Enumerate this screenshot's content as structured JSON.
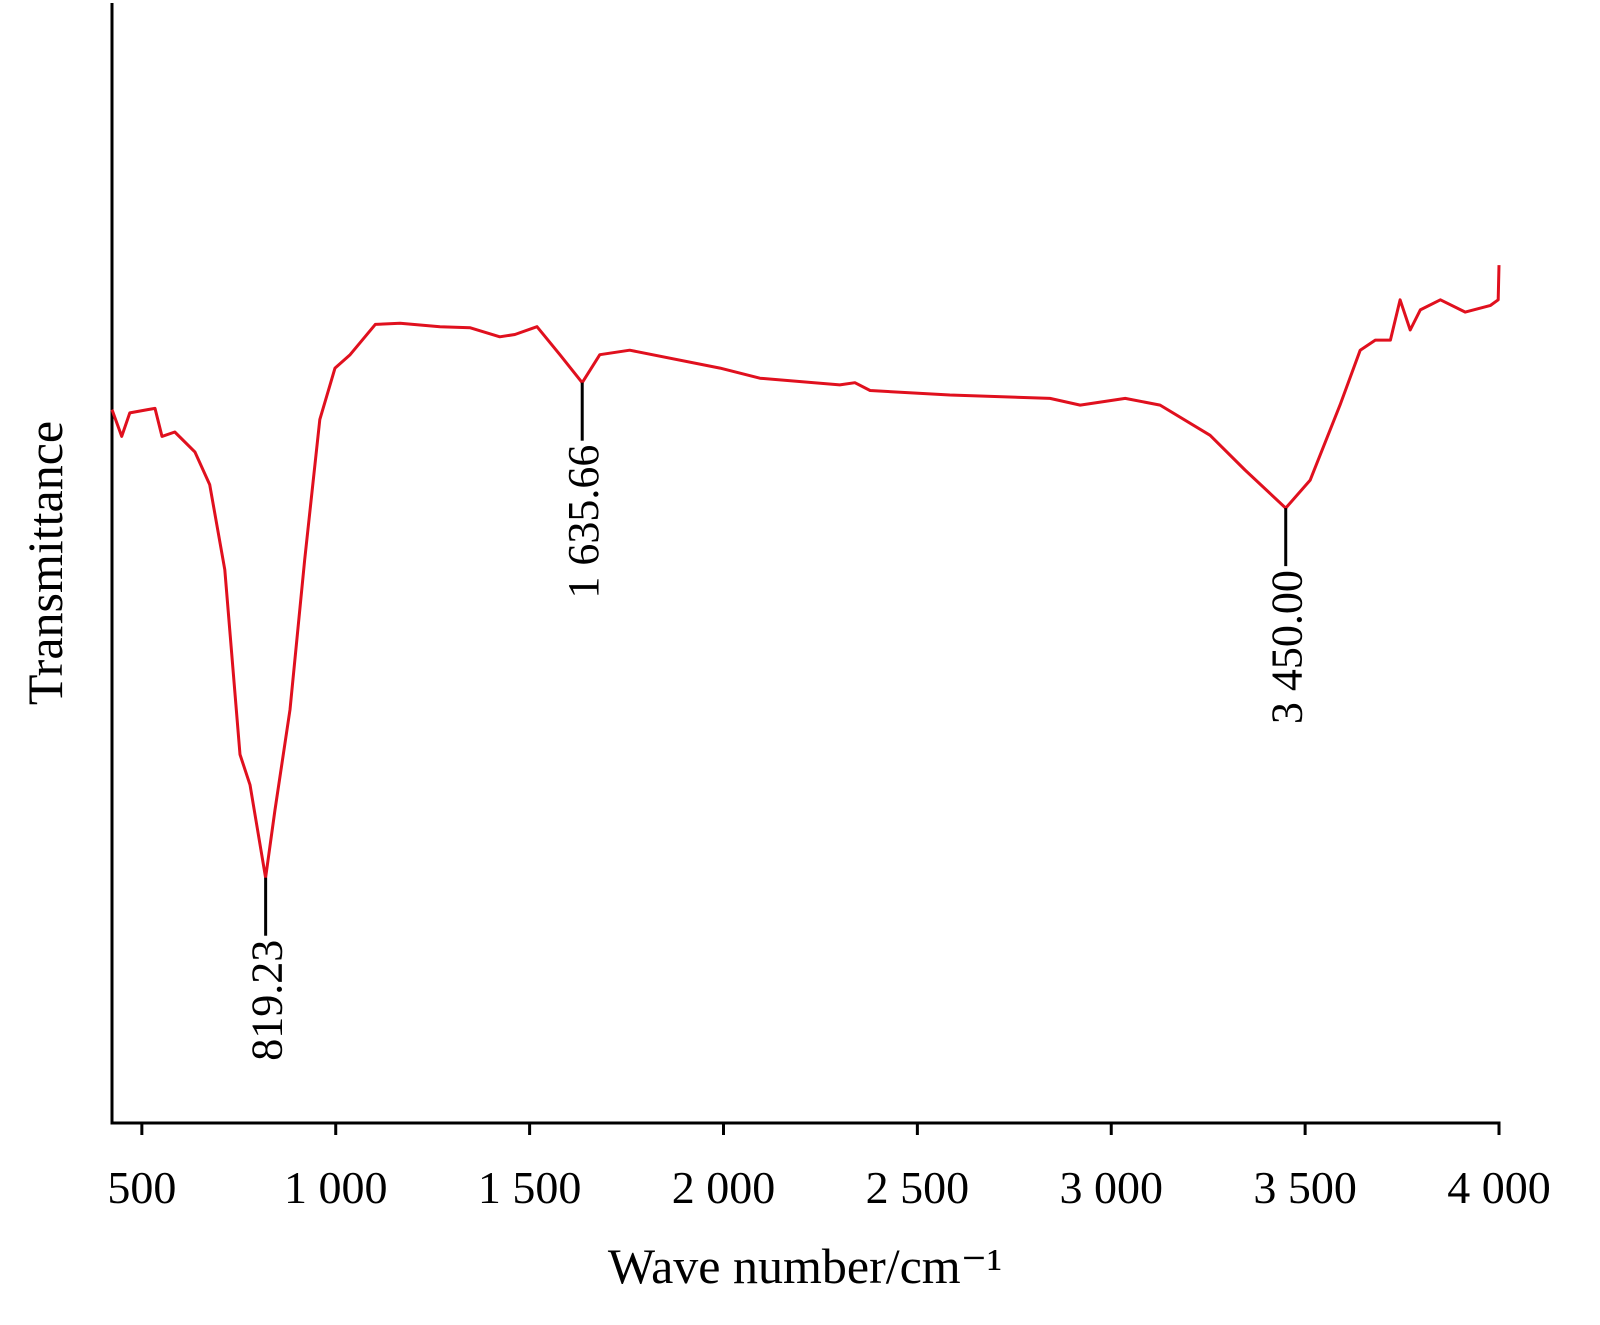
{
  "chart_data": {
    "type": "line",
    "xlabel": "Wave number/cm⁻¹",
    "ylabel": "Transmittance",
    "xlim": [
      423,
      4000
    ],
    "ylim": [
      0,
      100
    ],
    "xticks": [
      500,
      {
        "value": 1000,
        "label": "1 000"
      },
      {
        "value": 1500,
        "label": "1 500"
      },
      {
        "value": 2000,
        "label": "2 000"
      },
      {
        "value": 2500,
        "label": "2 500"
      },
      {
        "value": 3000,
        "label": "3 000"
      },
      {
        "value": 3500,
        "label": "3 500"
      },
      {
        "value": 4000,
        "label": "4 000"
      }
    ],
    "series": [
      {
        "color": "#e0101e",
        "x": [
          423,
          448,
          469,
          515,
          534,
          552,
          585,
          637,
          675,
          714,
          753,
          779,
          819.23,
          843,
          882,
          920,
          959,
          998,
          1037,
          1102,
          1166,
          1269,
          1347,
          1423,
          1462,
          1519,
          1578,
          1635.66,
          1681,
          1758,
          1991,
          2094,
          2300,
          2339,
          2378,
          2584,
          2842,
          2920,
          3036,
          3126,
          3255,
          3345,
          3450,
          3513,
          3590,
          3642,
          3681,
          3720,
          3745,
          3771,
          3797,
          3849,
          3913,
          3978,
          3998,
          4000
        ],
        "values": [
          63.7,
          61.3,
          63.4,
          63.7,
          63.8,
          61.3,
          61.7,
          59.9,
          57.0,
          49.4,
          32.9,
          30.2,
          21.9,
          27.9,
          36.9,
          50.3,
          62.8,
          67.4,
          68.6,
          71.3,
          71.4,
          71.1,
          71.0,
          70.2,
          70.4,
          71.1,
          68.6,
          66.1,
          68.6,
          69.0,
          67.4,
          66.5,
          65.9,
          66.1,
          65.4,
          65.0,
          64.7,
          64.1,
          64.7,
          64.1,
          61.4,
          58.3,
          54.9,
          57.4,
          64.1,
          69.0,
          69.9,
          69.9,
          73.5,
          70.8,
          72.6,
          73.5,
          72.4,
          73.0,
          73.5,
          76.6
        ]
      }
    ],
    "annotations": [
      {
        "x": 819.23,
        "y": 21.9,
        "label": "819.23"
      },
      {
        "x": 1635.66,
        "y": 66.1,
        "label": "1 635.66"
      },
      {
        "x": 3450,
        "y": 54.9,
        "label": "3 450.00"
      }
    ]
  }
}
